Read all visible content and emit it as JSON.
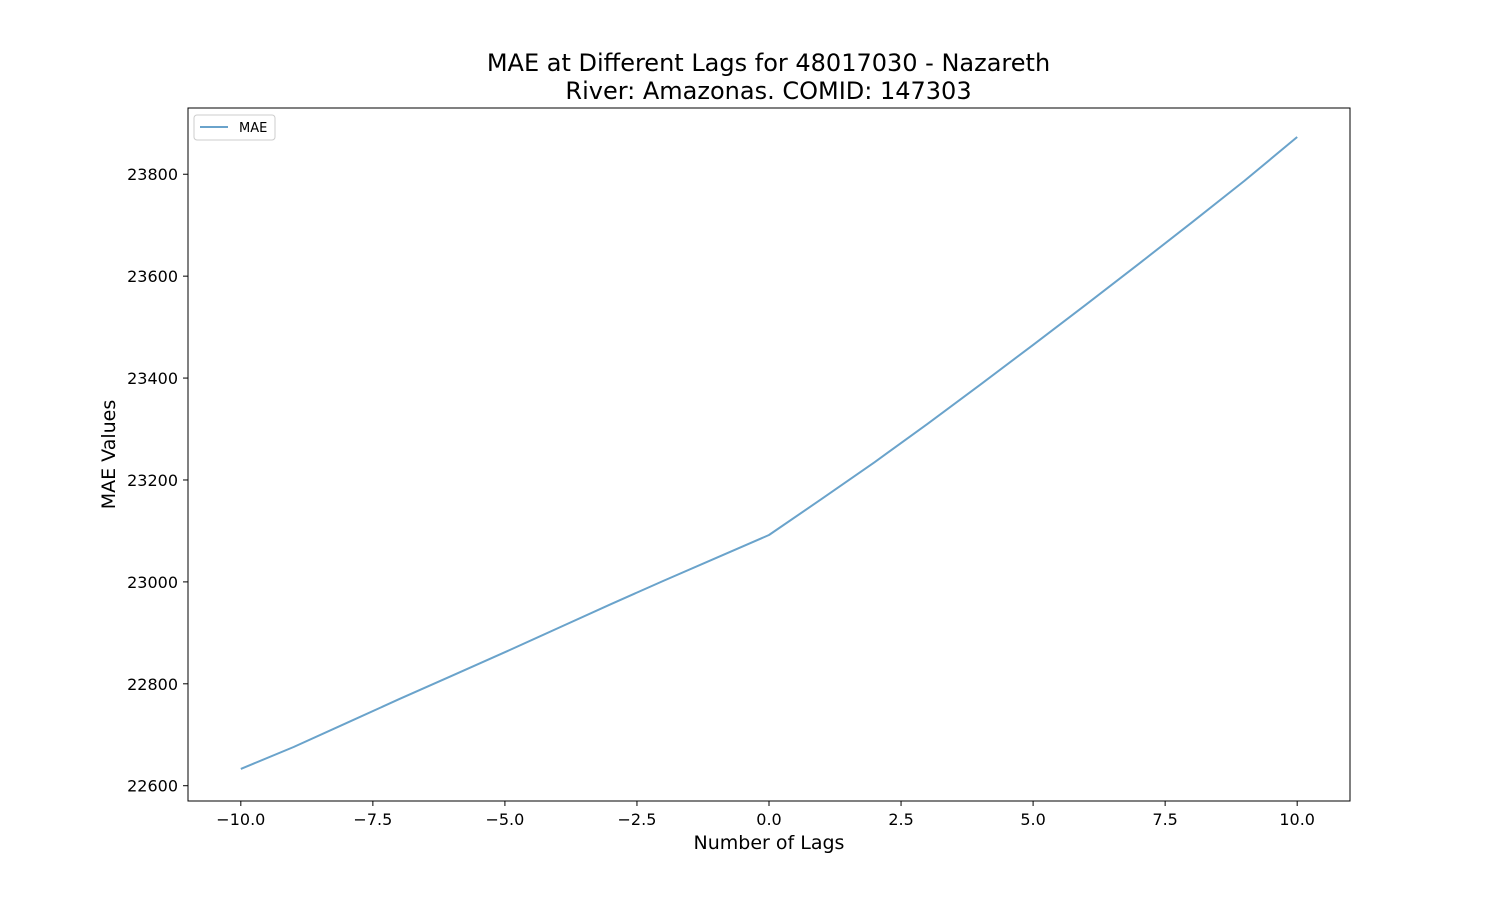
{
  "chart_data": {
    "type": "line",
    "title_line1": "MAE at Different Lags for 48017030 - Nazareth",
    "title_line2": "River: Amazonas. COMID: 147303",
    "xlabel": "Number of Lags",
    "ylabel": "MAE Values",
    "xlim": [
      -11,
      11
    ],
    "ylim": [
      22570,
      23930
    ],
    "x_ticks": [
      -10.0,
      -7.5,
      -5.0,
      -2.5,
      0.0,
      2.5,
      5.0,
      7.5,
      10.0
    ],
    "x_tick_labels": [
      "−10.0",
      "−7.5",
      "−5.0",
      "−2.5",
      "0.0",
      "2.5",
      "5.0",
      "7.5",
      "10.0"
    ],
    "y_ticks": [
      22600,
      22800,
      23000,
      23200,
      23400,
      23600,
      23800
    ],
    "y_tick_labels": [
      "22600",
      "22800",
      "23000",
      "23200",
      "23400",
      "23600",
      "23800"
    ],
    "grid": false,
    "legend_position": "top-left",
    "series": [
      {
        "name": "MAE",
        "color": "#6aa3cb",
        "x": [
          -10,
          -9,
          -8,
          -7,
          -6,
          -5,
          -4,
          -3,
          -2,
          -1,
          0,
          1,
          2,
          3,
          4,
          5,
          6,
          7,
          8,
          9,
          10
        ],
        "y": [
          22633,
          22676,
          22723,
          22770,
          22816,
          22862,
          22909,
          22956,
          23002,
          23047,
          23092,
          23163,
          23235,
          23310,
          23387,
          23465,
          23544,
          23624,
          23705,
          23787,
          23873
        ]
      }
    ]
  }
}
